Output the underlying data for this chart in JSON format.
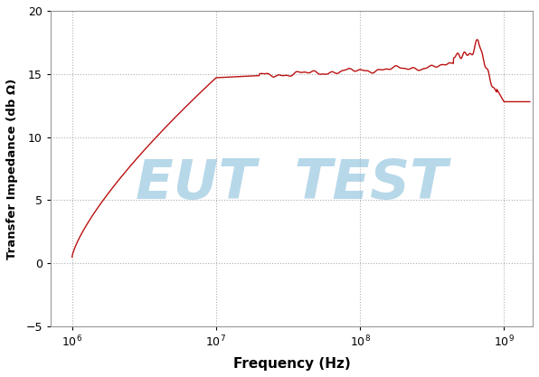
{
  "xlabel": "Frequency (Hz)",
  "ylabel": "Transfer Impedance (db Ω)",
  "xlim_log": [
    5.85,
    9.2
  ],
  "ylim": [
    -5,
    20
  ],
  "yticks": [
    -5,
    0,
    5,
    10,
    15,
    20
  ],
  "xticks_log": [
    6,
    7,
    8,
    9
  ],
  "line_color": "#bb1111",
  "grid_color": "#b0b0b0",
  "watermark_text": "EUT  TEST",
  "watermark_color": "#7db8d8",
  "watermark_alpha": 0.55,
  "background_color": "#ffffff",
  "figsize": [
    5.96,
    4.17
  ],
  "dpi": 100
}
